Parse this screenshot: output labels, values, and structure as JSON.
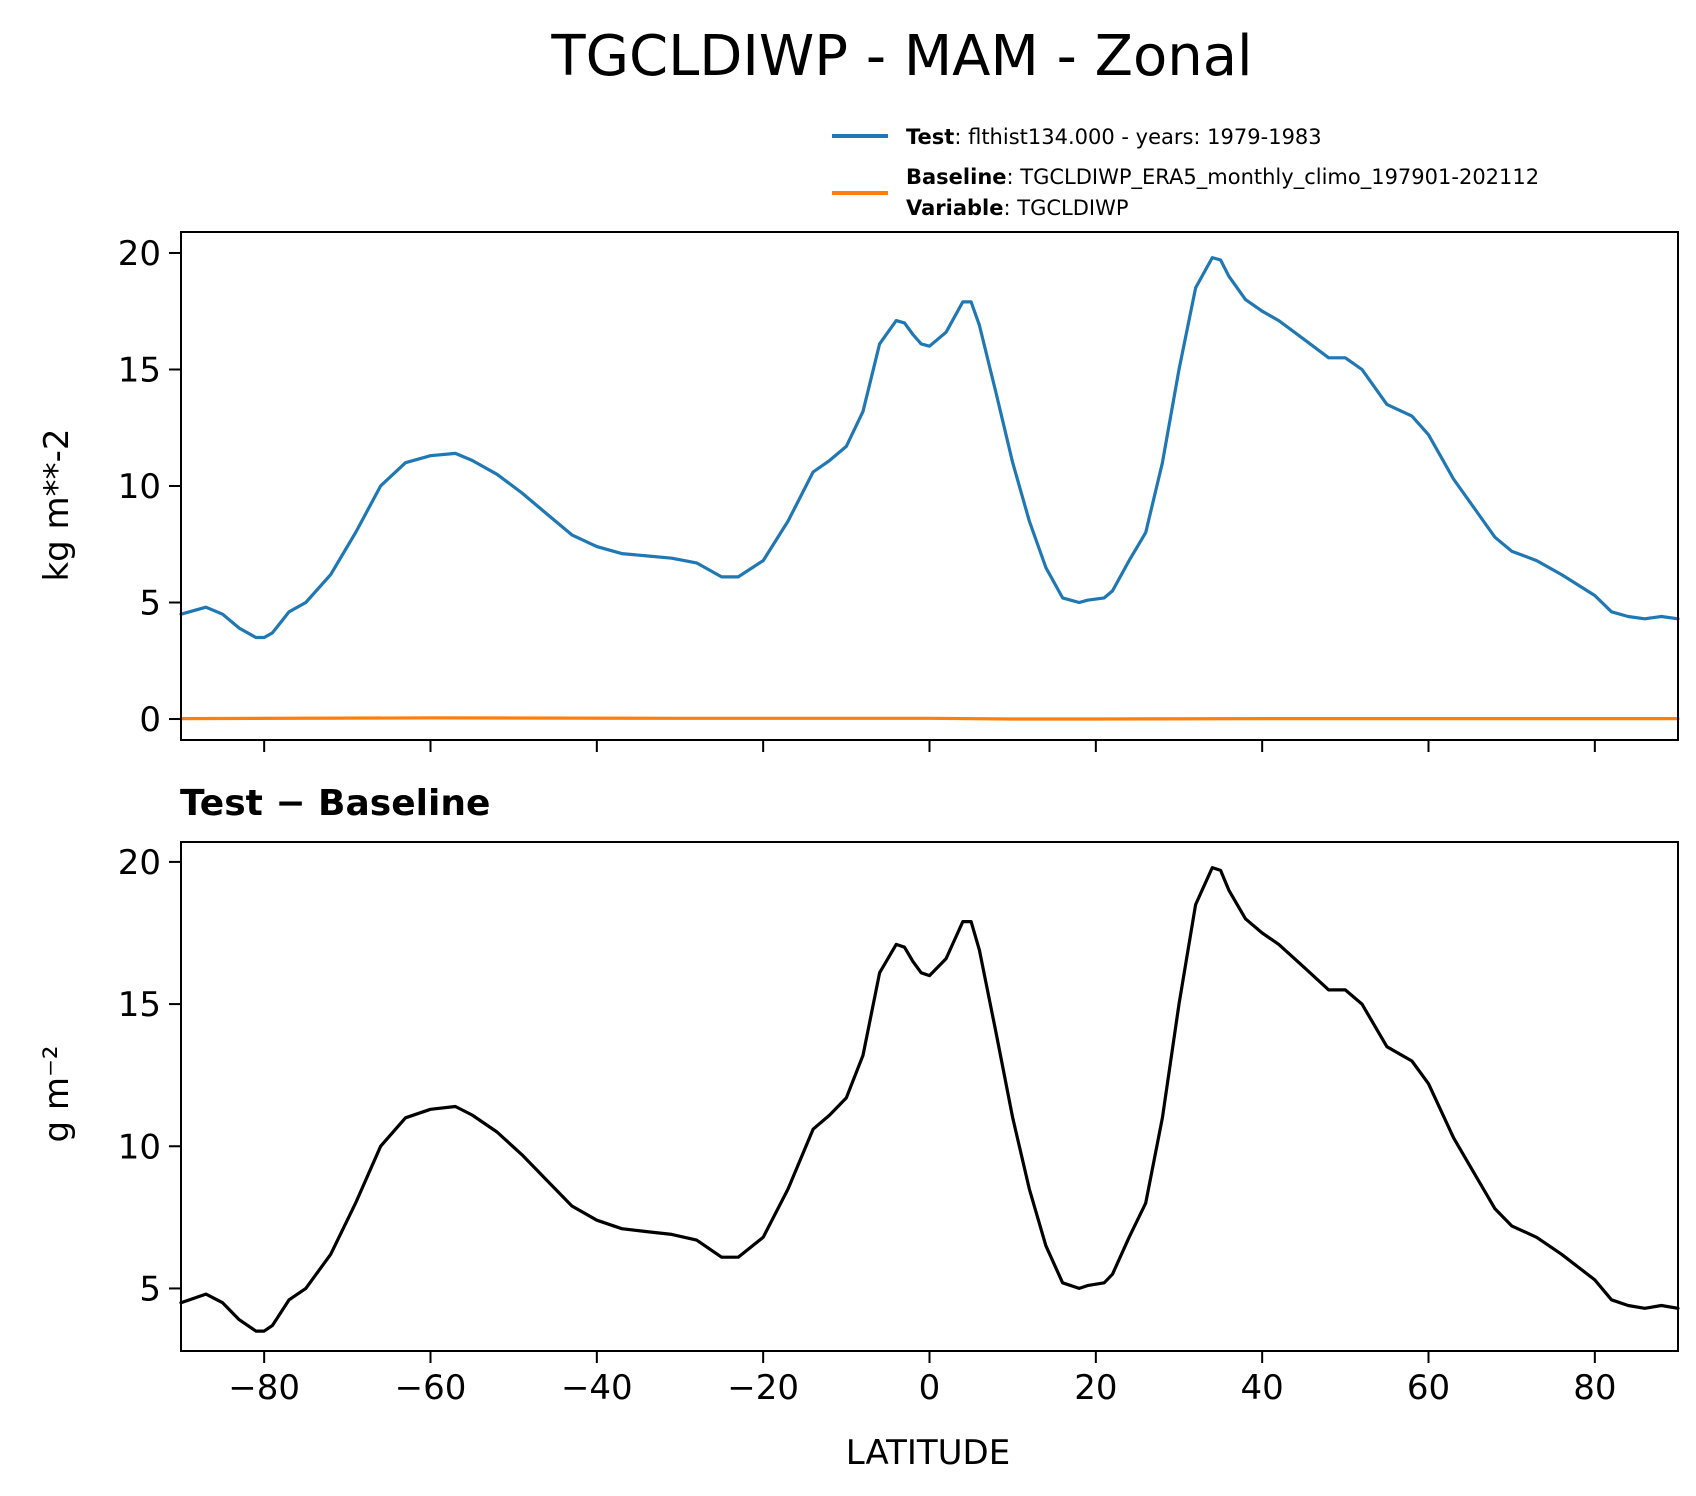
{
  "title": "TGCLDIWP - MAM - Zonal",
  "legend": {
    "test_key": "Test",
    "test_value": "flthist134.000 - years: 1979-1983",
    "baseline_key": "Baseline",
    "baseline_value": "TGCLDIWP_ERA5_monthly_climo_197901-202112",
    "variable_key": "Variable",
    "variable_value": "TGCLDIWP",
    "sep": ": "
  },
  "colors": {
    "test": "#1f77b4",
    "baseline": "#ff7f0e",
    "diff": "#000000"
  },
  "chart_data": [
    {
      "type": "line",
      "title": "",
      "xlabel": "",
      "ylabel": "kg m**-2",
      "xlim": [
        -90,
        90
      ],
      "ylim": [
        -0.9,
        20.9
      ],
      "xticks": [
        -80,
        -60,
        -40,
        -20,
        0,
        20,
        40,
        60,
        80
      ],
      "yticks": [
        0,
        5,
        10,
        15,
        20
      ],
      "ytick_labels": [
        "0",
        "5",
        "10",
        "15",
        "20"
      ],
      "grid": false,
      "legend_position": "top-right (above axes)",
      "series": [
        {
          "name": "Test",
          "x": [
            -90,
            -87,
            -85,
            -83,
            -81,
            -80,
            -79,
            -77,
            -75,
            -72,
            -69,
            -66,
            -63,
            -60,
            -57,
            -55,
            -52,
            -49,
            -46,
            -43,
            -40,
            -37,
            -34,
            -31,
            -28,
            -25,
            -23,
            -20,
            -17,
            -14,
            -12,
            -10,
            -8,
            -6,
            -4,
            -3,
            -2,
            -1,
            0,
            2,
            4,
            5,
            6,
            8,
            10,
            12,
            14,
            16,
            18,
            19,
            21,
            22,
            24,
            26,
            28,
            30,
            32,
            34,
            35,
            36,
            38,
            40,
            42,
            45,
            48,
            50,
            52,
            55,
            58,
            60,
            63,
            66,
            68,
            70,
            73,
            76,
            80,
            82,
            84,
            86,
            88,
            90
          ],
          "values": [
            4.5,
            4.8,
            4.5,
            3.9,
            3.5,
            3.5,
            3.7,
            4.6,
            5.0,
            6.2,
            8.0,
            10.0,
            11.0,
            11.3,
            11.4,
            11.1,
            10.5,
            9.7,
            8.8,
            7.9,
            7.4,
            7.1,
            7.0,
            6.9,
            6.7,
            6.1,
            6.1,
            6.8,
            8.5,
            10.6,
            11.1,
            11.7,
            13.2,
            16.1,
            17.1,
            17.0,
            16.5,
            16.1,
            16.0,
            16.6,
            17.9,
            17.9,
            16.9,
            14.0,
            11.0,
            8.5,
            6.5,
            5.2,
            5.0,
            5.1,
            5.2,
            5.5,
            6.8,
            8.0,
            11.0,
            15.0,
            18.5,
            19.8,
            19.7,
            19.0,
            18.0,
            17.5,
            17.1,
            16.3,
            15.5,
            15.5,
            15.0,
            13.5,
            13.0,
            12.2,
            10.3,
            8.8,
            7.8,
            7.2,
            6.8,
            6.2,
            5.3,
            4.6,
            4.4,
            4.3,
            4.4,
            4.3
          ]
        },
        {
          "name": "Baseline",
          "x": [
            -90,
            -60,
            -30,
            0,
            10,
            20,
            40,
            60,
            90
          ],
          "values": [
            0.02,
            0.05,
            0.03,
            0.03,
            0.0,
            0.0,
            0.02,
            0.02,
            0.02
          ]
        }
      ]
    },
    {
      "type": "line",
      "title": "Test − Baseline",
      "xlabel": "LATITUDE",
      "ylabel": "g m⁻²",
      "xlim": [
        -90,
        90
      ],
      "ylim": [
        2.8,
        20.7
      ],
      "xticks": [
        -80,
        -60,
        -40,
        -20,
        0,
        20,
        40,
        60,
        80
      ],
      "xtick_labels": [
        "−80",
        "−60",
        "−40",
        "−20",
        "0",
        "20",
        "40",
        "60",
        "80"
      ],
      "yticks": [
        5,
        10,
        15,
        20
      ],
      "ytick_labels": [
        "5",
        "10",
        "15",
        "20"
      ],
      "grid": false,
      "series": [
        {
          "x": [
            -90,
            -87,
            -85,
            -83,
            -81,
            -80,
            -79,
            -77,
            -75,
            -72,
            -69,
            -66,
            -63,
            -60,
            -57,
            -55,
            -52,
            -49,
            -46,
            -43,
            -40,
            -37,
            -34,
            -31,
            -28,
            -25,
            -23,
            -20,
            -17,
            -14,
            -12,
            -10,
            -8,
            -6,
            -4,
            -3,
            -2,
            -1,
            0,
            2,
            4,
            5,
            6,
            8,
            10,
            12,
            14,
            16,
            18,
            19,
            21,
            22,
            24,
            26,
            28,
            30,
            32,
            34,
            35,
            36,
            38,
            40,
            42,
            45,
            48,
            50,
            52,
            55,
            58,
            60,
            63,
            66,
            68,
            70,
            73,
            76,
            80,
            82,
            84,
            86,
            88,
            90
          ],
          "values": [
            4.5,
            4.8,
            4.5,
            3.9,
            3.5,
            3.5,
            3.7,
            4.6,
            5.0,
            6.2,
            8.0,
            10.0,
            11.0,
            11.3,
            11.4,
            11.1,
            10.5,
            9.7,
            8.8,
            7.9,
            7.4,
            7.1,
            7.0,
            6.9,
            6.7,
            6.1,
            6.1,
            6.8,
            8.5,
            10.6,
            11.1,
            11.7,
            13.2,
            16.1,
            17.1,
            17.0,
            16.5,
            16.1,
            16.0,
            16.6,
            17.9,
            17.9,
            16.9,
            14.0,
            11.0,
            8.5,
            6.5,
            5.2,
            5.0,
            5.1,
            5.2,
            5.5,
            6.8,
            8.0,
            11.0,
            15.0,
            18.5,
            19.8,
            19.7,
            19.0,
            18.0,
            17.5,
            17.1,
            16.3,
            15.5,
            15.5,
            15.0,
            13.5,
            13.0,
            12.2,
            10.3,
            8.8,
            7.8,
            7.2,
            6.8,
            6.2,
            5.3,
            4.6,
            4.4,
            4.3,
            4.4,
            4.3
          ]
        }
      ]
    }
  ]
}
